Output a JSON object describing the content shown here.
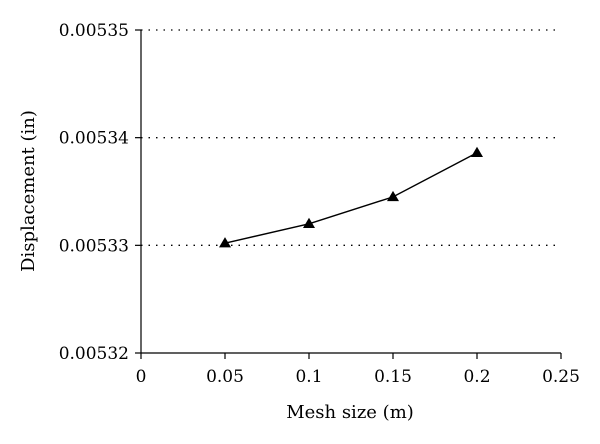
{
  "chart_data": {
    "type": "line",
    "title": "",
    "xlabel": "Mesh size (m)",
    "ylabel": "Displacement (in)",
    "xlim": [
      0,
      0.25
    ],
    "ylim": [
      0.00532,
      0.00535
    ],
    "x_ticks": [
      0,
      0.05,
      0.1,
      0.15,
      0.2,
      0.25
    ],
    "x_tick_labels": [
      "0",
      "0.05",
      "0.1",
      "0.15",
      "0.2",
      "0.25"
    ],
    "y_ticks": [
      0.00532,
      0.00533,
      0.00534,
      0.00535
    ],
    "y_tick_labels": [
      "0.00532",
      "0.00533",
      "0.00534",
      "0.00535"
    ],
    "grid": "horizontal dotted",
    "legend": "none",
    "series": [
      {
        "marker": "triangle",
        "color": "#000000",
        "x": [
          0.05,
          0.1,
          0.15,
          0.2
        ],
        "y": [
          0.0053302,
          0.005332,
          0.0053345,
          0.0053386
        ]
      }
    ]
  }
}
